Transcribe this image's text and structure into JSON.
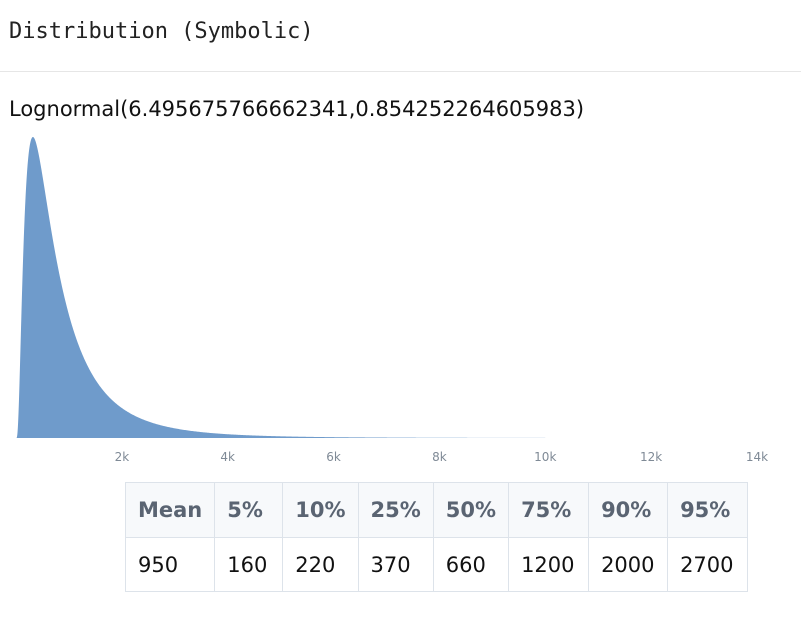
{
  "header": {
    "title": "Distribution (Symbolic)"
  },
  "distribution_label": "Lognormal(6.495675766662341,0.854252264605983)",
  "colors": {
    "fill": "#6f9bcb",
    "tick": "#7f8a96"
  },
  "chart_data": {
    "type": "area",
    "distribution": "lognormal",
    "mu": 6.495675766662341,
    "sigma": 0.854252264605983,
    "x_ticks": [
      "2k",
      "4k",
      "6k",
      "8k",
      "10k",
      "12k",
      "14k"
    ],
    "tick_values": [
      2000,
      4000,
      6000,
      8000,
      10000,
      12000,
      14000
    ],
    "xlim": [
      0,
      14000
    ],
    "curve_max_x": 10000,
    "grid": false,
    "legend": "none"
  },
  "stats_table": {
    "headers": [
      "Mean",
      "5%",
      "10%",
      "25%",
      "50%",
      "75%",
      "90%",
      "95%"
    ],
    "values": [
      "950",
      "160",
      "220",
      "370",
      "660",
      "1200",
      "2000",
      "2700"
    ]
  }
}
